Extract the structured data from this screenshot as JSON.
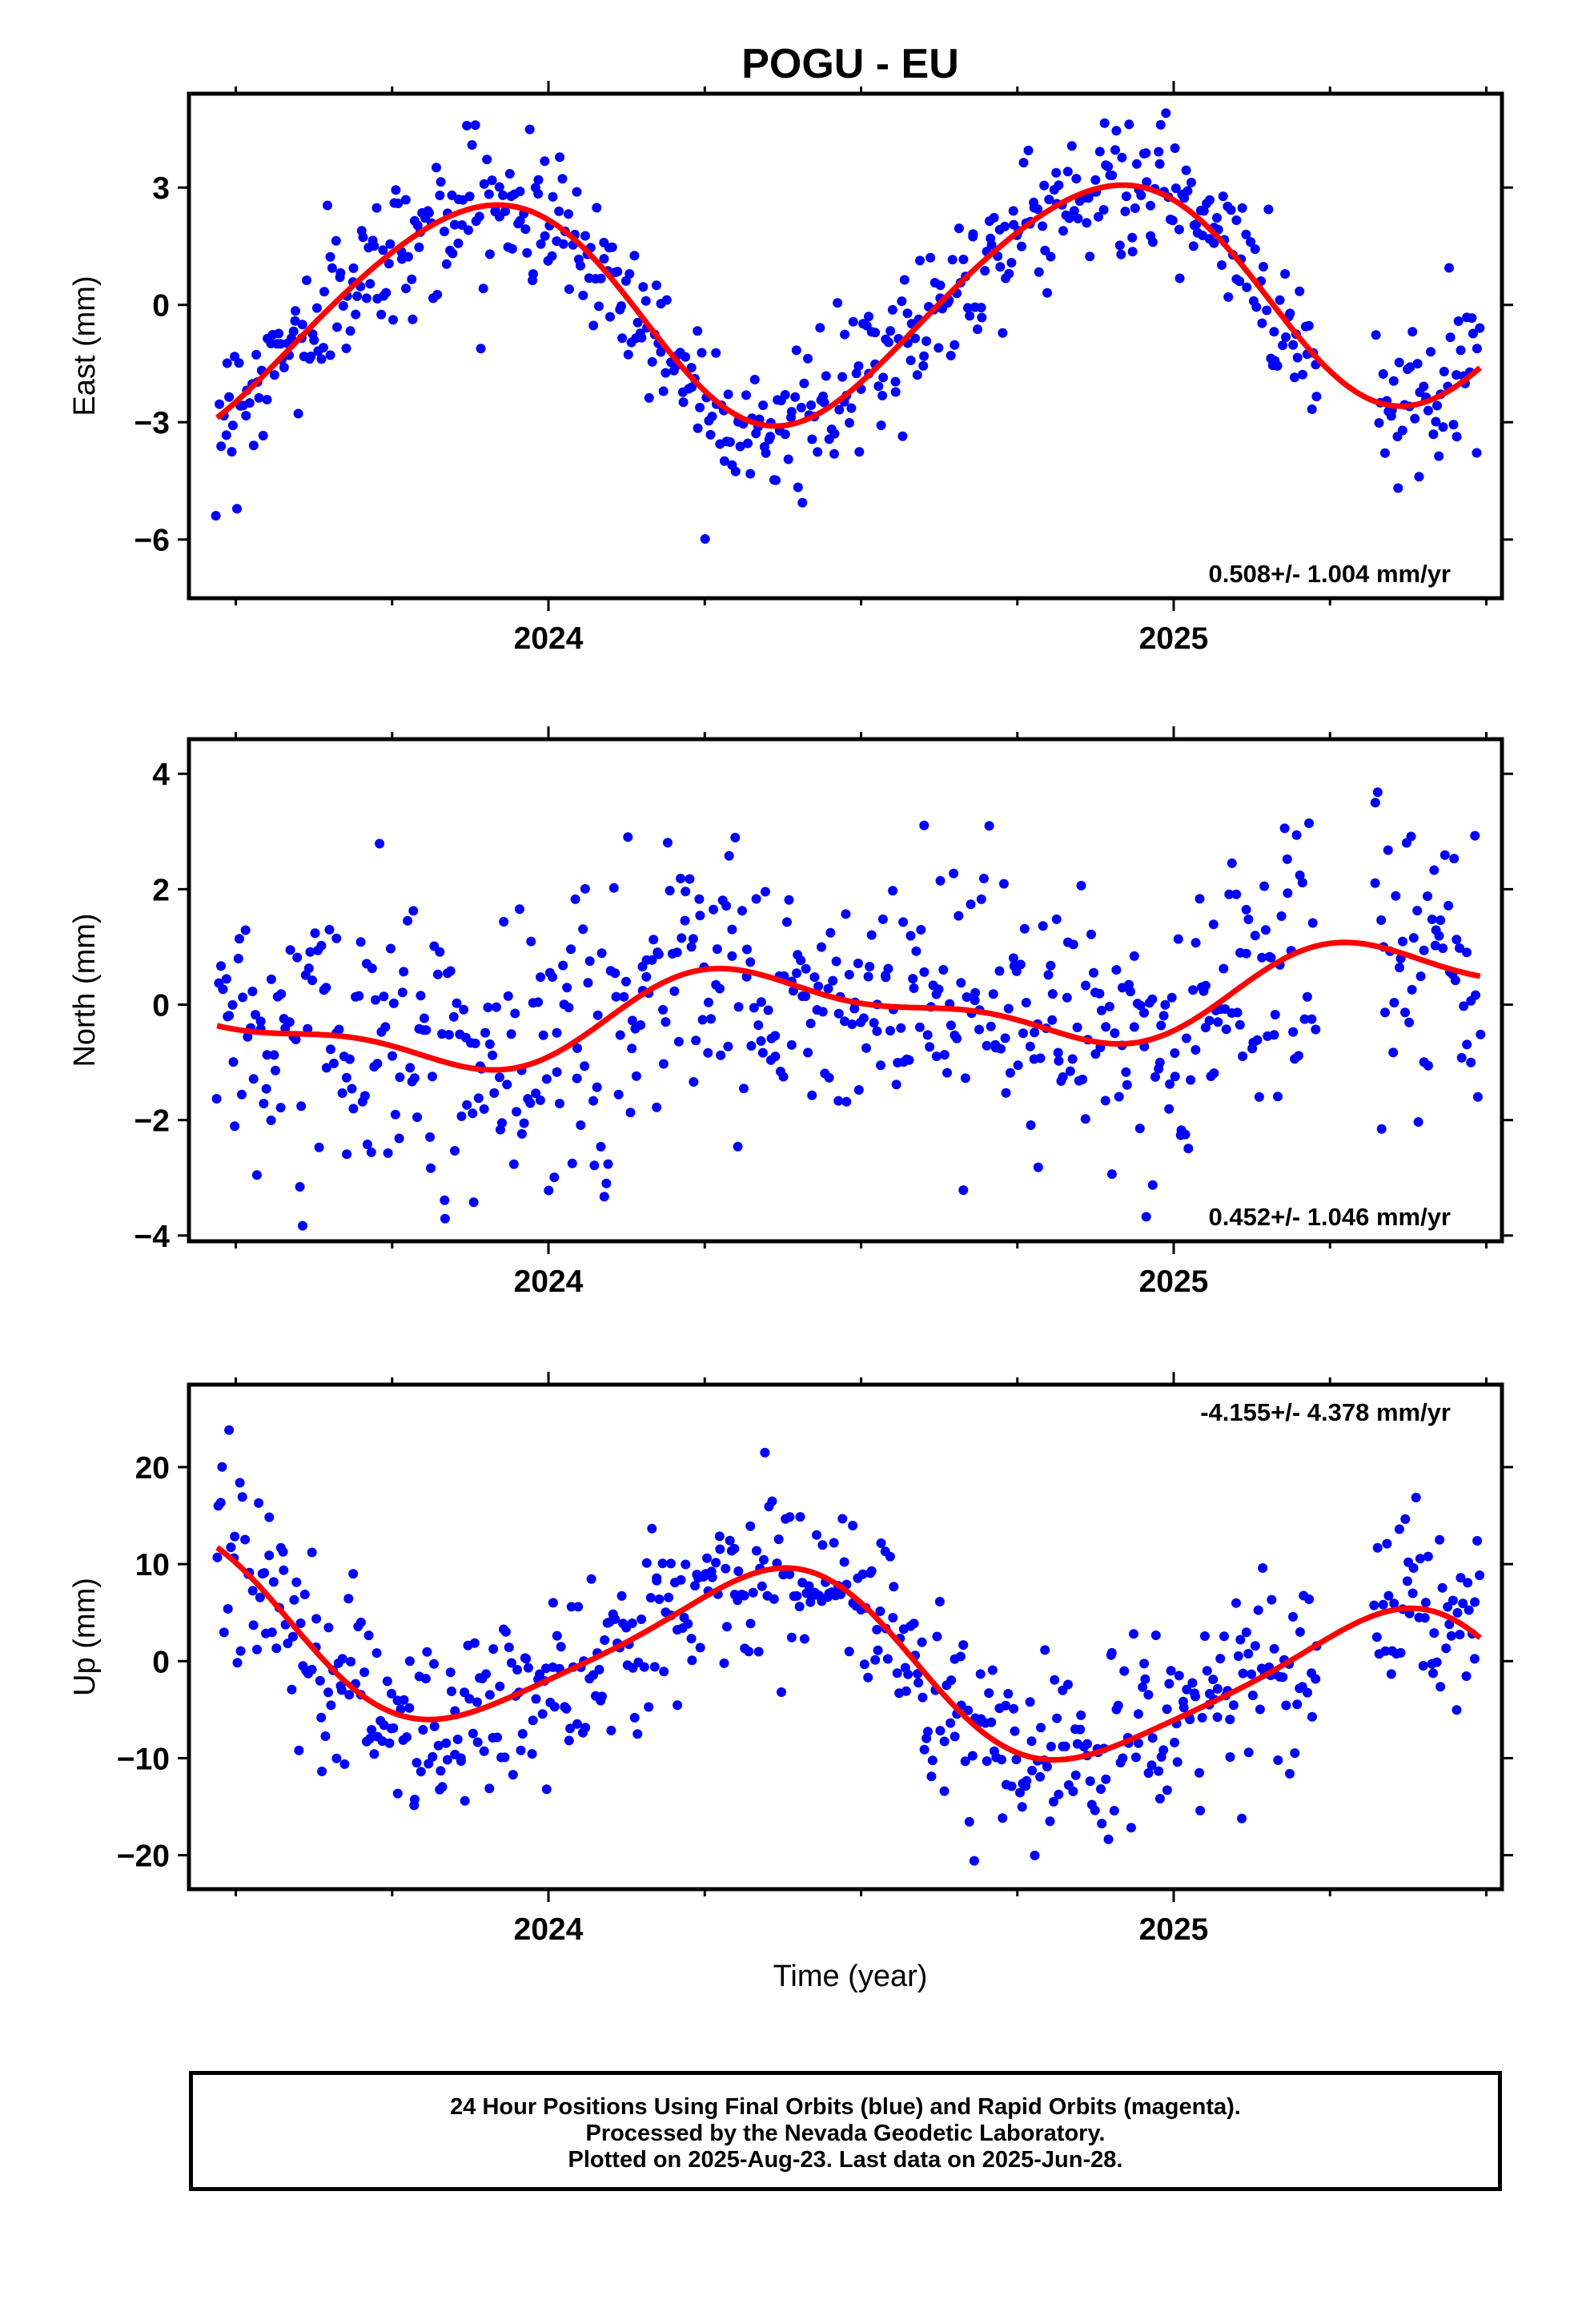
{
  "title": "POGU - EU",
  "x_axis_label": "Time (year)",
  "footer_lines": [
    "24 Hour Positions Using Final Orbits (blue) and Rapid Orbits (magenta).",
    "Processed by the Nevada Geodetic Laboratory.",
    "Plotted on 2025-Aug-23. Last data on 2025-Jun-28."
  ],
  "colors": {
    "points": "#0000ff",
    "fit": "#ff0000",
    "axes": "#000000"
  },
  "chart_data": [
    {
      "type": "scatter",
      "ylabel": "East (mm)",
      "rate": "0.508+/- 1.004 mm/yr",
      "rate_position": "bottom-right",
      "xlim": [
        2023.425,
        2025.525
      ],
      "ylim": [
        -7.5,
        5.4
      ],
      "x_ticks": [
        2024,
        2025
      ],
      "x_tick_labels": [
        "2024",
        "2025"
      ],
      "y_ticks": [
        3,
        0,
        -3,
        -6
      ],
      "y_tick_labels": [
        "3",
        "0",
        "−3",
        "−6"
      ],
      "fit": {
        "offset": 0.0,
        "trend": 0.508,
        "cos_amp": 2.2,
        "sin_amp": -1.9,
        "cos2_amp": 0.2,
        "sin2_amp": 0.15,
        "x_start": 2023.47,
        "x_end": 2025.49
      },
      "scatter": {
        "count": 620,
        "noise": 0.9,
        "x_start": 2023.47,
        "x_end": 2025.49,
        "gap": [
          2025.23,
          2025.32
        ]
      }
    },
    {
      "type": "scatter",
      "ylabel": "North (mm)",
      "rate": "0.452+/- 1.046 mm/yr",
      "rate_position": "bottom-right",
      "xlim": [
        2023.425,
        2025.525
      ],
      "ylim": [
        -4.1,
        4.6
      ],
      "x_ticks": [
        2024,
        2025
      ],
      "x_tick_labels": [
        "2024",
        "2025"
      ],
      "y_ticks": [
        4,
        2,
        0,
        -2,
        -4
      ],
      "y_tick_labels": [
        "4",
        "2",
        "0",
        "−2",
        "−4"
      ],
      "fit": {
        "offset": -0.1,
        "trend": 0.452,
        "cos_amp": -0.35,
        "sin_amp": 0.55,
        "cos2_amp": -0.25,
        "sin2_amp": 0.1,
        "x_start": 2023.47,
        "x_end": 2025.49
      },
      "scatter": {
        "count": 620,
        "noise": 1.15,
        "x_start": 2023.47,
        "x_end": 2025.49,
        "gap": [
          2025.23,
          2025.32
        ]
      }
    },
    {
      "type": "scatter",
      "ylabel": "Up (mm)",
      "rate": "-4.155+/- 4.378 mm/yr",
      "rate_position": "top-right",
      "xlim": [
        2023.425,
        2025.525
      ],
      "ylim": [
        -23.5,
        28.5
      ],
      "x_ticks": [
        2024,
        2025
      ],
      "x_tick_labels": [
        "2024",
        "2025"
      ],
      "y_ticks": [
        20,
        10,
        0,
        -10,
        -20
      ],
      "y_tick_labels": [
        "20",
        "10",
        "0",
        "−10",
        "−20"
      ],
      "fit": {
        "offset": 0.0,
        "trend": -4.155,
        "cos_amp": -5.0,
        "sin_amp": 7.0,
        "cos2_amp": 1.2,
        "sin2_amp": -0.8,
        "x_start": 2023.47,
        "x_end": 2025.49
      },
      "scatter": {
        "count": 620,
        "noise": 4.6,
        "x_start": 2023.47,
        "x_end": 2025.49,
        "gap": [
          2025.23,
          2025.32
        ]
      }
    }
  ]
}
